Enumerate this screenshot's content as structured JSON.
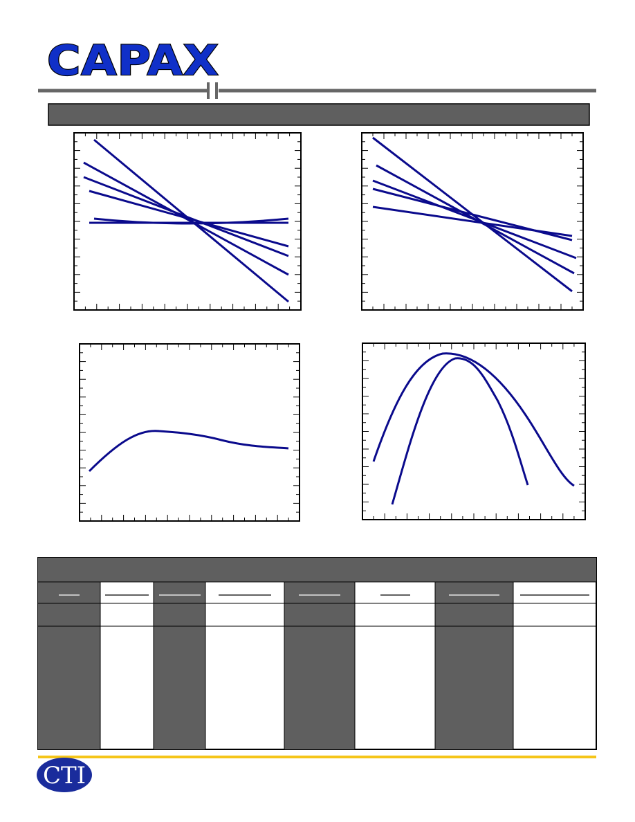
{
  "header": {
    "logo": "CAPAX"
  },
  "footer": {
    "logo": "CTI"
  }
}
